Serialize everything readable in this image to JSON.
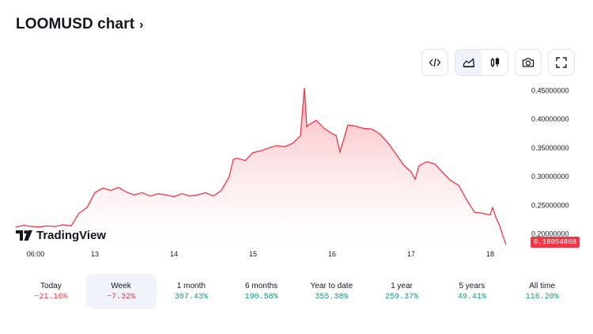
{
  "header": {
    "title": "LOOMUSD chart",
    "chevron_icon": "chevron-right-icon"
  },
  "toolbar": {
    "buttons": [
      {
        "name": "embed-code",
        "icon": "code-icon"
      },
      {
        "name": "area-chart",
        "icon": "area-chart-icon",
        "active": true
      },
      {
        "name": "candles-chart",
        "icon": "candles-icon"
      },
      {
        "name": "snapshot",
        "icon": "camera-icon"
      },
      {
        "name": "fullscreen",
        "icon": "fullscreen-icon"
      }
    ]
  },
  "branding": {
    "logo_text": "TradingView"
  },
  "colors": {
    "line": "#f23645",
    "fill_top": "#f7a9b1",
    "fill_bottom": "#ffffff",
    "positive": "#089981",
    "negative": "#f23645"
  },
  "chart_data": {
    "type": "area",
    "series_label": "LOOMUSD",
    "x_ticks": [
      "06:00",
      "13",
      "14",
      "15",
      "16",
      "17",
      "18"
    ],
    "y_ticks": [
      "0.45000000",
      "0.40000000",
      "0.35000000",
      "0.30000000",
      "0.25000000",
      "0.20000000"
    ],
    "ylim": [
      0.18,
      0.47
    ],
    "last_price_label": "0.18054868",
    "last_price": 0.18054868,
    "x_range_days": [
      12.0,
      18.2
    ],
    "x_tick_values": [
      12.25,
      13,
      14,
      15,
      16,
      17,
      18
    ],
    "y_tick_values": [
      0.45,
      0.4,
      0.35,
      0.3,
      0.25,
      0.2
    ],
    "points": [
      [
        12.0,
        0.212
      ],
      [
        12.1,
        0.215
      ],
      [
        12.2,
        0.213
      ],
      [
        12.3,
        0.212
      ],
      [
        12.4,
        0.214
      ],
      [
        12.5,
        0.213
      ],
      [
        12.6,
        0.216
      ],
      [
        12.7,
        0.214
      ],
      [
        12.8,
        0.236
      ],
      [
        12.9,
        0.246
      ],
      [
        13.0,
        0.272
      ],
      [
        13.1,
        0.28
      ],
      [
        13.2,
        0.276
      ],
      [
        13.3,
        0.281
      ],
      [
        13.4,
        0.273
      ],
      [
        13.5,
        0.268
      ],
      [
        13.6,
        0.272
      ],
      [
        13.7,
        0.266
      ],
      [
        13.8,
        0.27
      ],
      [
        13.9,
        0.268
      ],
      [
        14.0,
        0.265
      ],
      [
        14.1,
        0.27
      ],
      [
        14.2,
        0.266
      ],
      [
        14.3,
        0.268
      ],
      [
        14.4,
        0.272
      ],
      [
        14.5,
        0.266
      ],
      [
        14.6,
        0.276
      ],
      [
        14.7,
        0.3
      ],
      [
        14.75,
        0.33
      ],
      [
        14.8,
        0.332
      ],
      [
        14.9,
        0.328
      ],
      [
        15.0,
        0.342
      ],
      [
        15.1,
        0.345
      ],
      [
        15.2,
        0.35
      ],
      [
        15.3,
        0.354
      ],
      [
        15.4,
        0.352
      ],
      [
        15.5,
        0.358
      ],
      [
        15.6,
        0.371
      ],
      [
        15.65,
        0.455
      ],
      [
        15.68,
        0.387
      ],
      [
        15.7,
        0.39
      ],
      [
        15.8,
        0.398
      ],
      [
        15.9,
        0.384
      ],
      [
        16.0,
        0.375
      ],
      [
        16.05,
        0.372
      ],
      [
        16.1,
        0.343
      ],
      [
        16.2,
        0.39
      ],
      [
        16.3,
        0.388
      ],
      [
        16.4,
        0.384
      ],
      [
        16.5,
        0.383
      ],
      [
        16.6,
        0.375
      ],
      [
        16.7,
        0.36
      ],
      [
        16.8,
        0.341
      ],
      [
        16.9,
        0.321
      ],
      [
        17.0,
        0.308
      ],
      [
        17.05,
        0.295
      ],
      [
        17.1,
        0.319
      ],
      [
        17.2,
        0.326
      ],
      [
        17.3,
        0.322
      ],
      [
        17.4,
        0.307
      ],
      [
        17.5,
        0.293
      ],
      [
        17.6,
        0.285
      ],
      [
        17.7,
        0.26
      ],
      [
        17.8,
        0.238
      ],
      [
        17.9,
        0.236
      ],
      [
        18.0,
        0.233
      ],
      [
        18.03,
        0.246
      ],
      [
        18.08,
        0.226
      ],
      [
        18.12,
        0.214
      ],
      [
        18.16,
        0.197
      ],
      [
        18.2,
        0.181
      ]
    ]
  },
  "periods": [
    {
      "label": "Today",
      "value": "−21.16%",
      "dir": "neg"
    },
    {
      "label": "Week",
      "value": "−7.32%",
      "dir": "neg",
      "active": true
    },
    {
      "label": "1 month",
      "value": "307.43%",
      "dir": "pos"
    },
    {
      "label": "6 months",
      "value": "190.58%",
      "dir": "pos"
    },
    {
      "label": "Year to date",
      "value": "355.38%",
      "dir": "pos"
    },
    {
      "label": "1 year",
      "value": "259.37%",
      "dir": "pos"
    },
    {
      "label": "5 years",
      "value": "49.41%",
      "dir": "pos"
    },
    {
      "label": "All time",
      "value": "116.20%",
      "dir": "pos"
    }
  ]
}
